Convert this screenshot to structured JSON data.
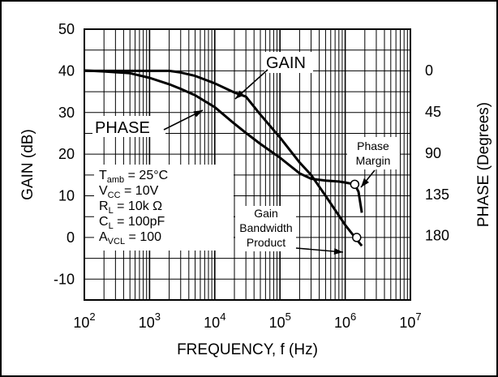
{
  "chart_data": {
    "type": "line",
    "title": "",
    "xlabel": "FREQUENCY, f (Hz)",
    "ylabel_left": "GAIN (dB)",
    "ylabel_right": "PHASE (Degrees)",
    "x_scale": "log",
    "x_range": [
      100,
      10000000
    ],
    "y_left_range": [
      -15,
      50
    ],
    "y_right_range": [
      -45,
      250
    ],
    "x_tick_labels": [
      {
        "value": 100,
        "base": "10",
        "exp": "2"
      },
      {
        "value": 1000,
        "base": "10",
        "exp": "3"
      },
      {
        "value": 10000,
        "base": "10",
        "exp": "4"
      },
      {
        "value": 100000,
        "base": "10",
        "exp": "5"
      },
      {
        "value": 1000000,
        "base": "10",
        "exp": "6"
      },
      {
        "value": 10000000,
        "base": "10",
        "exp": "7"
      }
    ],
    "y_left_ticks": [
      "50",
      "40",
      "30",
      "20",
      "10",
      "0",
      "-10"
    ],
    "y_left_tick_values": [
      50,
      40,
      30,
      20,
      10,
      0,
      -10
    ],
    "y_right_ticks": [
      "0",
      "45",
      "90",
      "135",
      "180"
    ],
    "y_right_tick_values": [
      0,
      45,
      90,
      135,
      180
    ],
    "grid": true,
    "series": [
      {
        "name": "GAIN",
        "axis": "left",
        "x": [
          100,
          200,
          500,
          1000,
          2000,
          3000,
          5000,
          10000,
          20000,
          30000,
          50000,
          100000,
          200000,
          300000,
          500000,
          1000000,
          1500000,
          1800000
        ],
        "y": [
          40,
          40,
          40,
          40,
          40,
          39.6,
          38.8,
          37,
          34.8,
          33.8,
          29.5,
          24,
          18,
          15,
          10,
          3,
          -0.5,
          -2
        ]
      },
      {
        "name": "PHASE",
        "axis": "right",
        "x": [
          100,
          200,
          500,
          1000,
          2000,
          3000,
          5000,
          10000,
          20000,
          30000,
          50000,
          100000,
          200000,
          300000,
          500000,
          800000,
          1000000,
          1400000,
          1600000,
          1800000
        ],
        "y": [
          0,
          1,
          3,
          8,
          15,
          20,
          27,
          40,
          58,
          68,
          80,
          95,
          112,
          118,
          120,
          121,
          122,
          124,
          132,
          155
        ]
      }
    ],
    "annotations": {
      "gain_label": "GAIN",
      "phase_label": "PHASE",
      "phase_margin_line1": "Phase",
      "phase_margin_line2": "Margin",
      "gbw_line1": "Gain",
      "gbw_line2": "Bandwidth",
      "gbw_line3": "Product",
      "phase_margin_marker": {
        "x": 1400000,
        "phase": 124
      },
      "gbw_marker": {
        "x": 1500000,
        "gain": 0
      }
    },
    "conditions": [
      {
        "sym": "T",
        "sub": "amb",
        "rest": " = 25°C"
      },
      {
        "sym": "V",
        "sub": "CC",
        "rest": "  = 10V"
      },
      {
        "sym": "R",
        "sub": "L",
        "rest": " = 10k Ω"
      },
      {
        "sym": "C",
        "sub": "L",
        "rest": " = 100pF"
      },
      {
        "sym": "A",
        "sub": "VCL",
        "rest": "  = 100"
      }
    ]
  }
}
